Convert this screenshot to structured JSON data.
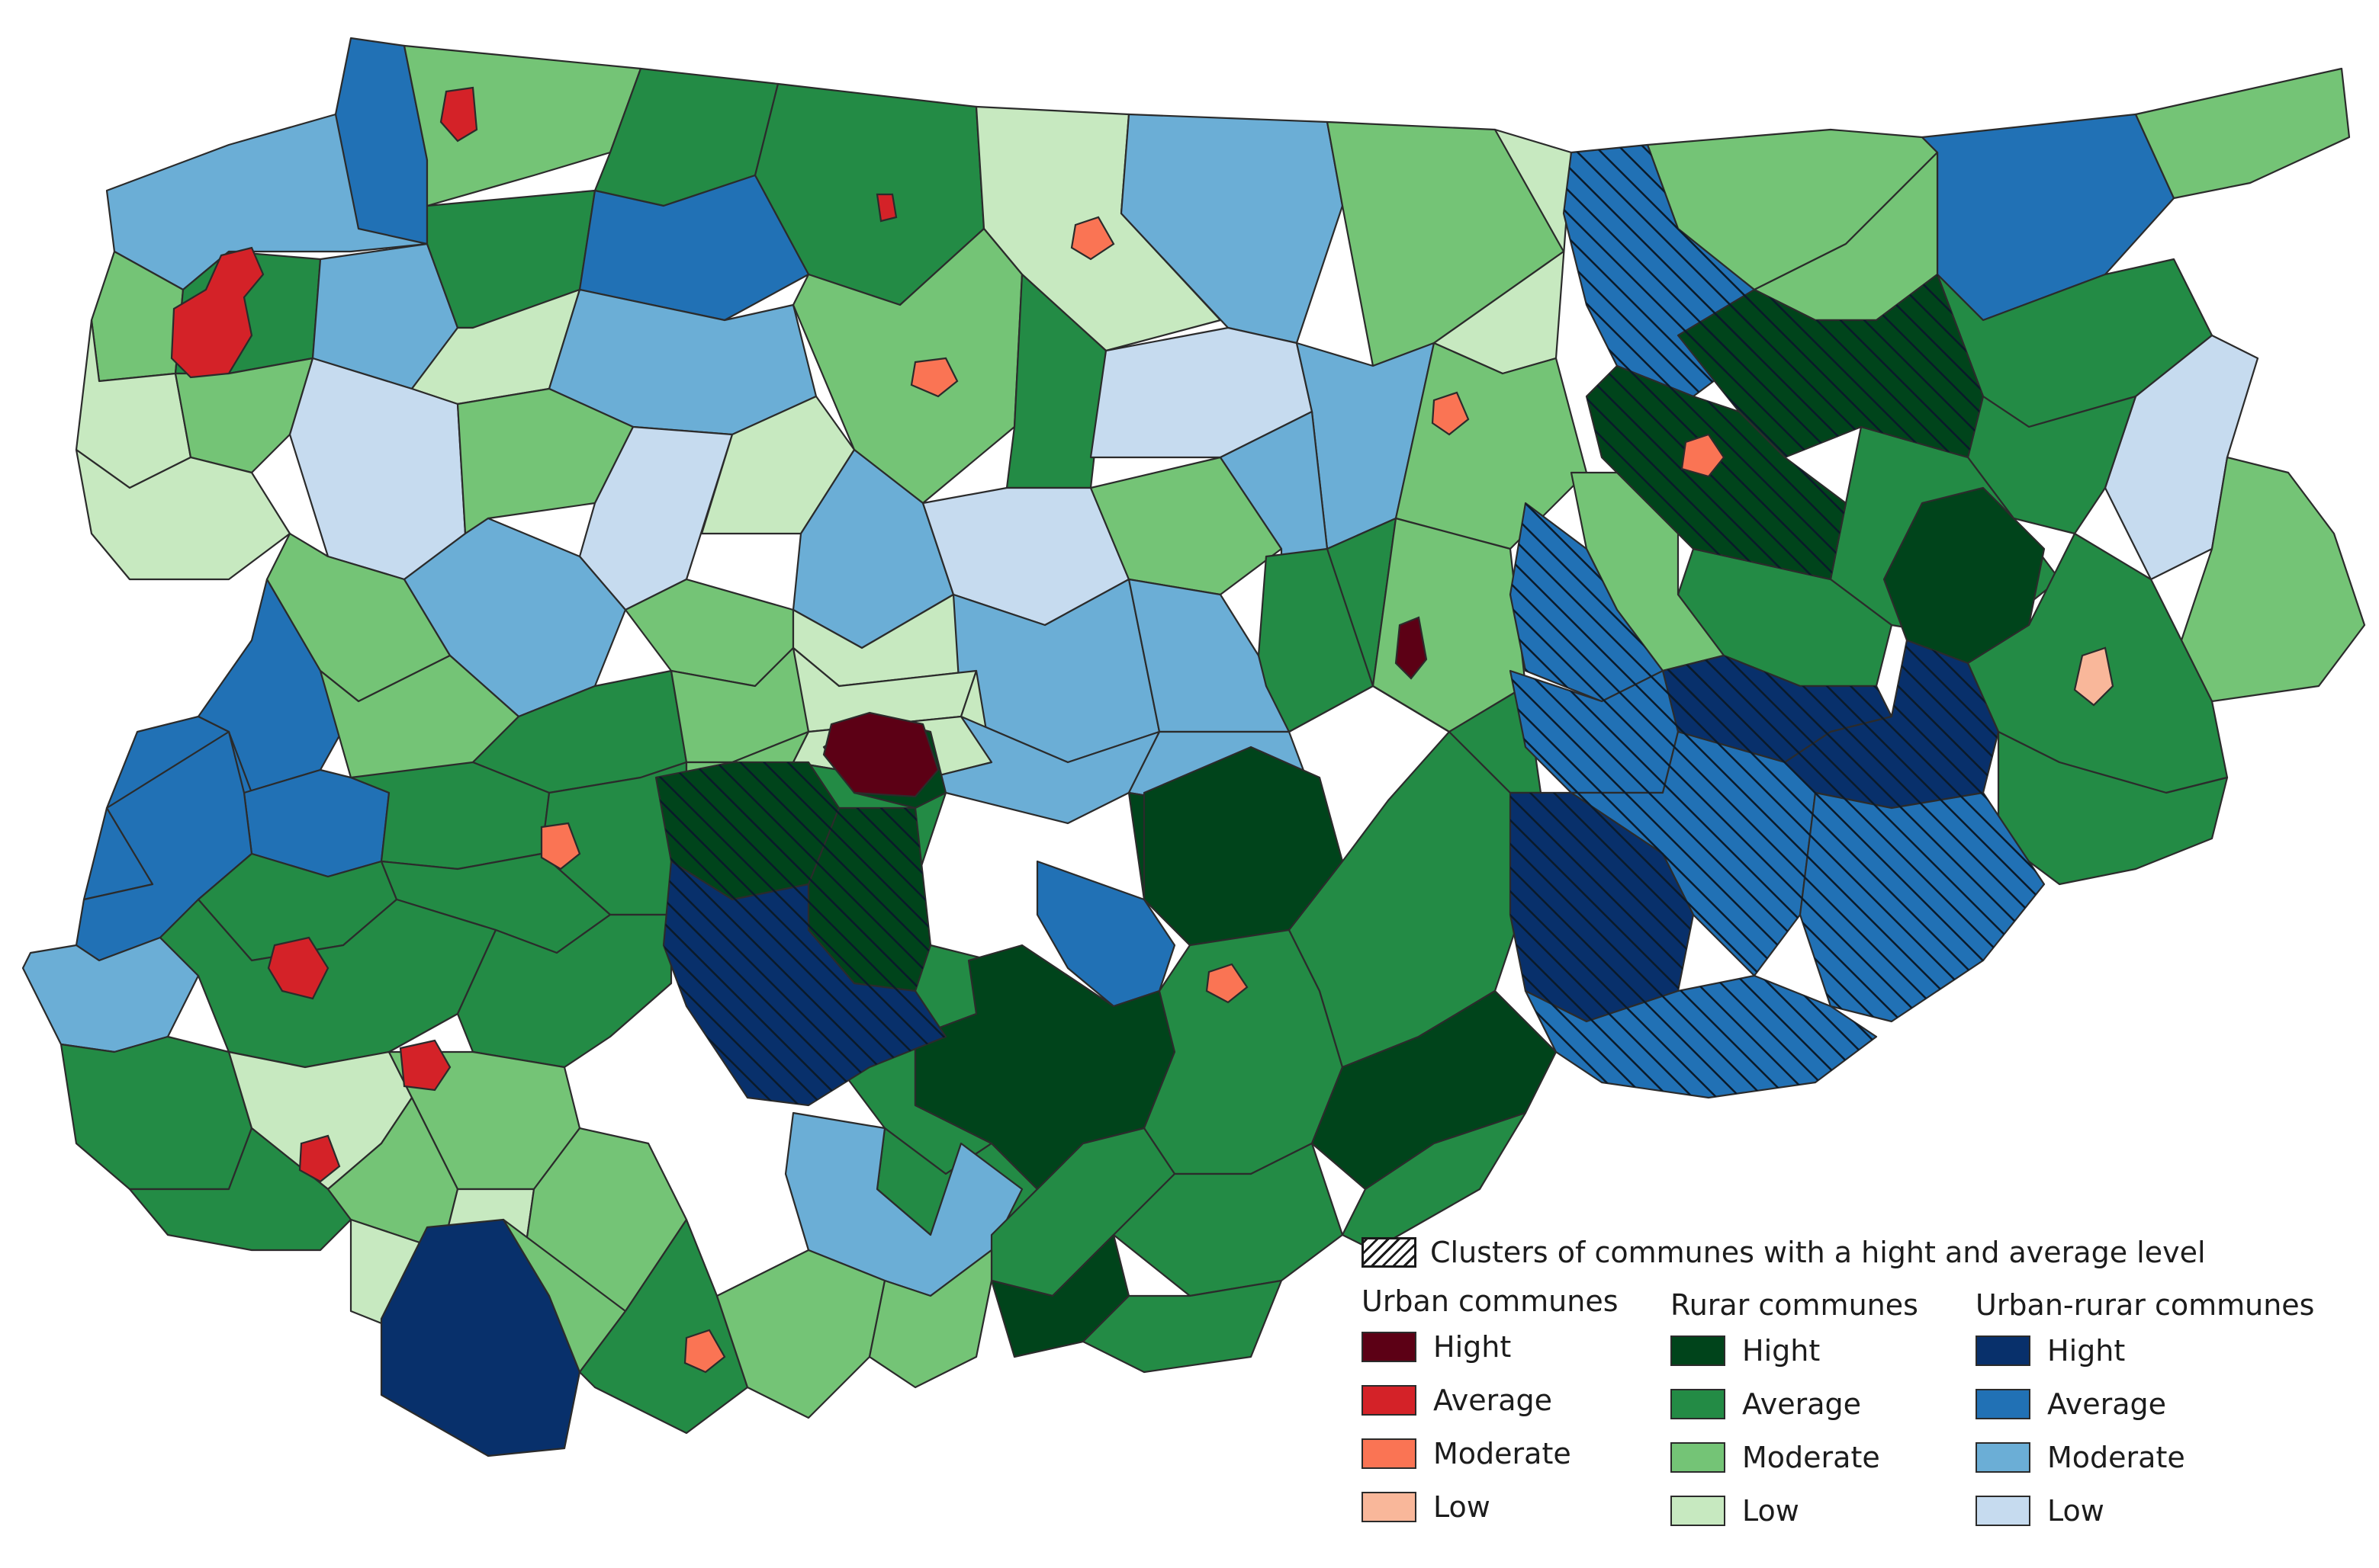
{
  "colors": {
    "urban": {
      "hight": "#5c0015",
      "average": "#d42228",
      "moderate": "#fa7454",
      "low": "#f9b79a"
    },
    "rurar": {
      "hight": "#00441b",
      "average": "#238b45",
      "moderate": "#74c476",
      "low": "#c7e9c0"
    },
    "urban_rurar": {
      "hight": "#08306b",
      "average": "#2171b5",
      "moderate": "#6baed6",
      "low": "#c6dbef"
    }
  },
  "legend": {
    "cluster_label": "Clusters of communes with a hight and average level",
    "groups": [
      {
        "key": "urban",
        "title": "Urban communes",
        "items": [
          {
            "label": "Hight",
            "color": "#5c0015"
          },
          {
            "label": "Average",
            "color": "#d42228"
          },
          {
            "label": "Moderate",
            "color": "#fa7454"
          },
          {
            "label": "Low",
            "color": "#f9b79a"
          }
        ]
      },
      {
        "key": "rurar",
        "title": "Rurar communes",
        "items": [
          {
            "label": "Hight",
            "color": "#00441b"
          },
          {
            "label": "Average",
            "color": "#238b45"
          },
          {
            "label": "Moderate",
            "color": "#74c476"
          },
          {
            "label": "Low",
            "color": "#c7e9c0"
          }
        ]
      },
      {
        "key": "urban_rurar",
        "title": "Urban-rurar communes",
        "items": [
          {
            "label": "Hight",
            "color": "#08306b"
          },
          {
            "label": "Average",
            "color": "#2171b5"
          },
          {
            "label": "Moderate",
            "color": "#6baed6"
          },
          {
            "label": "Low",
            "color": "#c6dbef"
          }
        ]
      }
    ]
  }
}
